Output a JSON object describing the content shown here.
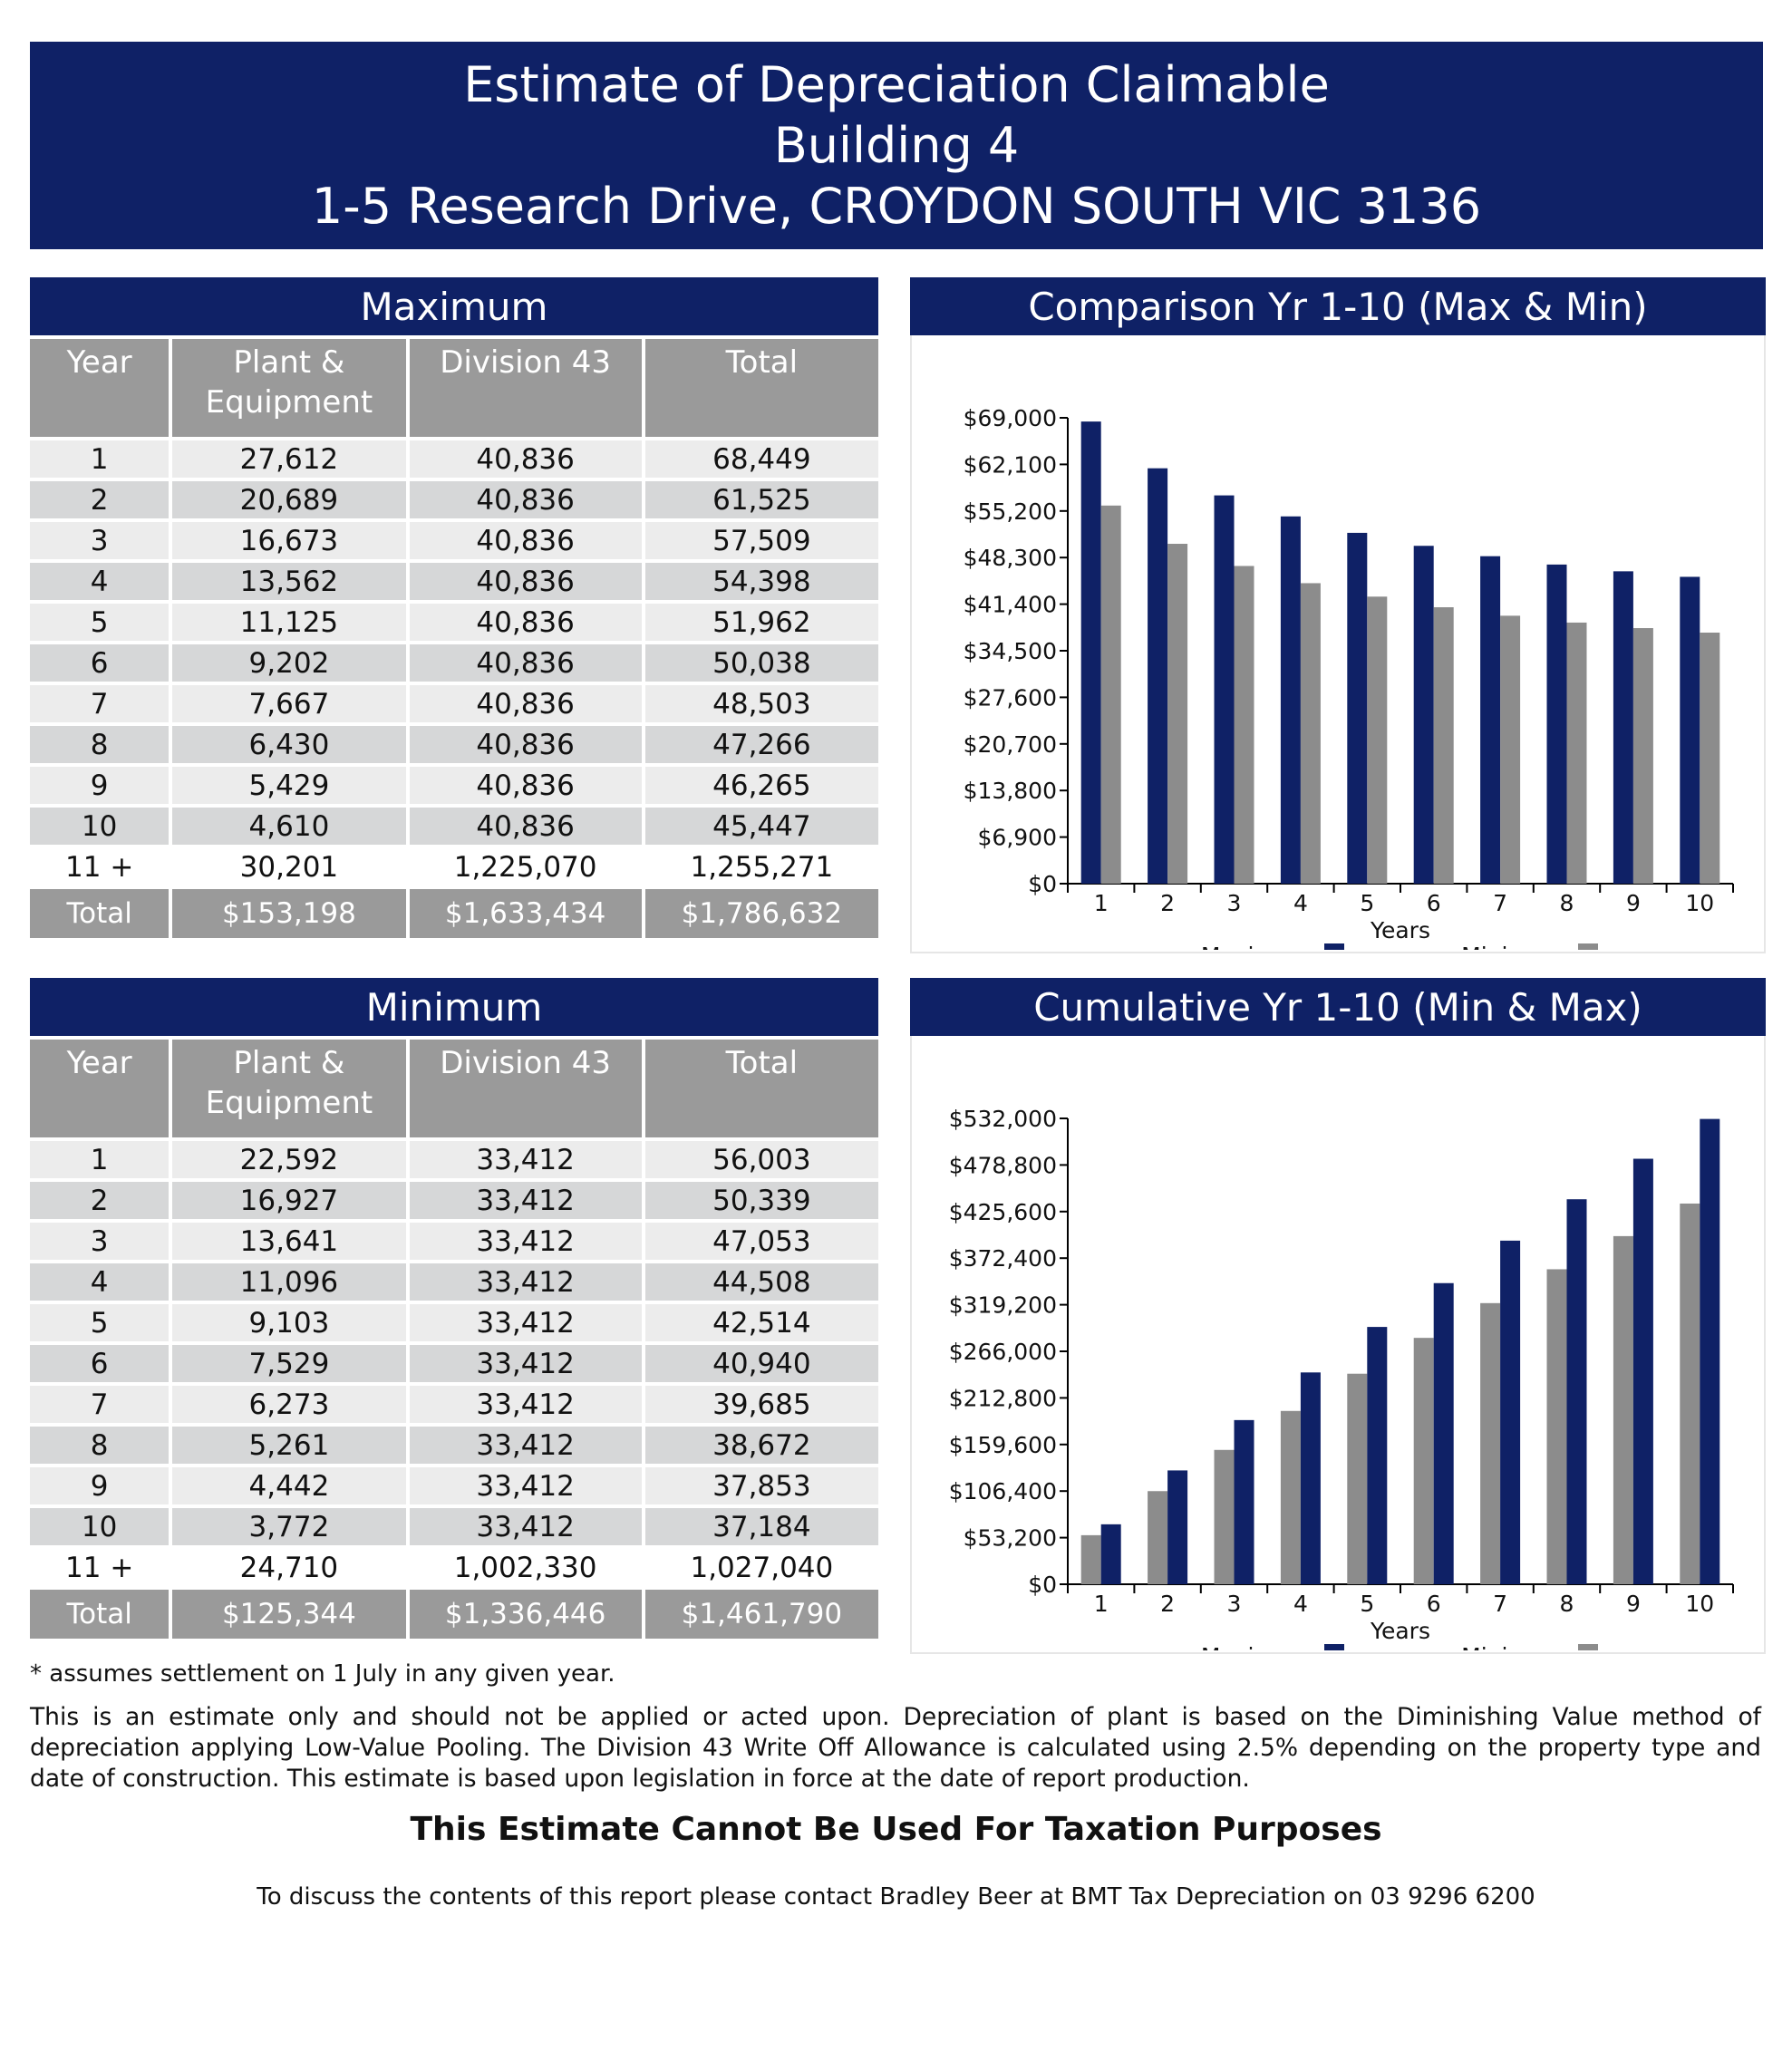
{
  "header": {
    "line1": "Estimate of Depreciation Claimable",
    "line2": "Building 4",
    "line3": "1-5 Research Drive, CROYDON SOUTH VIC 3136"
  },
  "colors": {
    "navy": "#0f2166",
    "grey": "#8c8c8c",
    "header_grey": "#9a9a9a"
  },
  "tables": {
    "maximum": {
      "title": "Maximum",
      "columns": [
        "Year",
        "Plant & Equipment",
        "Division 43",
        "Total"
      ],
      "rows": [
        {
          "year": "1",
          "plant": "27,612",
          "div43": "40,836",
          "total": "68,449"
        },
        {
          "year": "2",
          "plant": "20,689",
          "div43": "40,836",
          "total": "61,525"
        },
        {
          "year": "3",
          "plant": "16,673",
          "div43": "40,836",
          "total": "57,509"
        },
        {
          "year": "4",
          "plant": "13,562",
          "div43": "40,836",
          "total": "54,398"
        },
        {
          "year": "5",
          "plant": "11,125",
          "div43": "40,836",
          "total": "51,962"
        },
        {
          "year": "6",
          "plant": "9,202",
          "div43": "40,836",
          "total": "50,038"
        },
        {
          "year": "7",
          "plant": "7,667",
          "div43": "40,836",
          "total": "48,503"
        },
        {
          "year": "8",
          "plant": "6,430",
          "div43": "40,836",
          "total": "47,266"
        },
        {
          "year": "9",
          "plant": "5,429",
          "div43": "40,836",
          "total": "46,265"
        },
        {
          "year": "10",
          "plant": "4,610",
          "div43": "40,836",
          "total": "45,447"
        },
        {
          "year": "11 +",
          "plant": "30,201",
          "div43": "1,225,070",
          "total": "1,255,271"
        }
      ],
      "total": {
        "label": "Total",
        "plant": "$153,198",
        "div43": "$1,633,434",
        "total": "$1,786,632"
      }
    },
    "minimum": {
      "title": "Minimum",
      "columns": [
        "Year",
        "Plant & Equipment",
        "Division 43",
        "Total"
      ],
      "rows": [
        {
          "year": "1",
          "plant": "22,592",
          "div43": "33,412",
          "total": "56,003"
        },
        {
          "year": "2",
          "plant": "16,927",
          "div43": "33,412",
          "total": "50,339"
        },
        {
          "year": "3",
          "plant": "13,641",
          "div43": "33,412",
          "total": "47,053"
        },
        {
          "year": "4",
          "plant": "11,096",
          "div43": "33,412",
          "total": "44,508"
        },
        {
          "year": "5",
          "plant": "9,103",
          "div43": "33,412",
          "total": "42,514"
        },
        {
          "year": "6",
          "plant": "7,529",
          "div43": "33,412",
          "total": "40,940"
        },
        {
          "year": "7",
          "plant": "6,273",
          "div43": "33,412",
          "total": "39,685"
        },
        {
          "year": "8",
          "plant": "5,261",
          "div43": "33,412",
          "total": "38,672"
        },
        {
          "year": "9",
          "plant": "4,442",
          "div43": "33,412",
          "total": "37,853"
        },
        {
          "year": "10",
          "plant": "3,772",
          "div43": "33,412",
          "total": "37,184"
        },
        {
          "year": "11 +",
          "plant": "24,710",
          "div43": "1,002,330",
          "total": "1,027,040"
        }
      ],
      "total": {
        "label": "Total",
        "plant": "$125,344",
        "div43": "$1,336,446",
        "total": "$1,461,790"
      }
    }
  },
  "chart_data": [
    {
      "type": "bar",
      "title": "Comparison Yr 1-10 (Max & Min)",
      "xlabel": "Years",
      "ylabel": "",
      "categories": [
        "1",
        "2",
        "3",
        "4",
        "5",
        "6",
        "7",
        "8",
        "9",
        "10"
      ],
      "ylim": [
        0,
        69000
      ],
      "yticks": [
        "$0",
        "$6,900",
        "$13,800",
        "$20,700",
        "$27,600",
        "$34,500",
        "$41,400",
        "$48,300",
        "$55,200",
        "$62,100",
        "$69,000"
      ],
      "legend_position": "bottom",
      "series": [
        {
          "name": "Maximum",
          "color": "#0f2166",
          "values": [
            68449,
            61525,
            57509,
            54398,
            51962,
            50038,
            48503,
            47266,
            46265,
            45447
          ]
        },
        {
          "name": "Minimum",
          "color": "#8c8c8c",
          "values": [
            56003,
            50339,
            47053,
            44508,
            42514,
            40940,
            39685,
            38672,
            37853,
            37184
          ]
        }
      ]
    },
    {
      "type": "bar",
      "title": "Cumulative Yr 1-10 (Min & Max)",
      "xlabel": "Years",
      "ylabel": "",
      "categories": [
        "1",
        "2",
        "3",
        "4",
        "5",
        "6",
        "7",
        "8",
        "9",
        "10"
      ],
      "ylim": [
        0,
        532000
      ],
      "yticks": [
        "$0",
        "$53,200",
        "$106,400",
        "$159,600",
        "$212,800",
        "$266,000",
        "$319,200",
        "$372,400",
        "$425,600",
        "$478,800",
        "$532,000"
      ],
      "legend_position": "bottom",
      "series": [
        {
          "name": "Minimum",
          "color": "#8c8c8c",
          "values": [
            56003,
            106342,
            153395,
            197903,
            240417,
            281357,
            321042,
            359714,
            397567,
            434751
          ]
        },
        {
          "name": "Maximum",
          "color": "#0f2166",
          "values": [
            68449,
            129974,
            187483,
            241881,
            293843,
            343881,
            392384,
            439650,
            485915,
            531362
          ]
        }
      ]
    }
  ],
  "footer": {
    "footnote": "* assumes settlement on 1 July in any given year.",
    "disclaimer": "This is an estimate only and should not be applied or acted upon. Depreciation of plant is based on the Diminishing Value method of depreciation applying Low-Value Pooling. The Division 43 Write Off Allowance is calculated using 2.5% depending on the property type and date of construction. This estimate is based upon legislation in force at the date of report production.",
    "heading": "This Estimate Cannot Be Used For Taxation Purposes",
    "contact": "To discuss the contents of this report please contact Bradley Beer at BMT Tax Depreciation on 03 9296 6200"
  }
}
